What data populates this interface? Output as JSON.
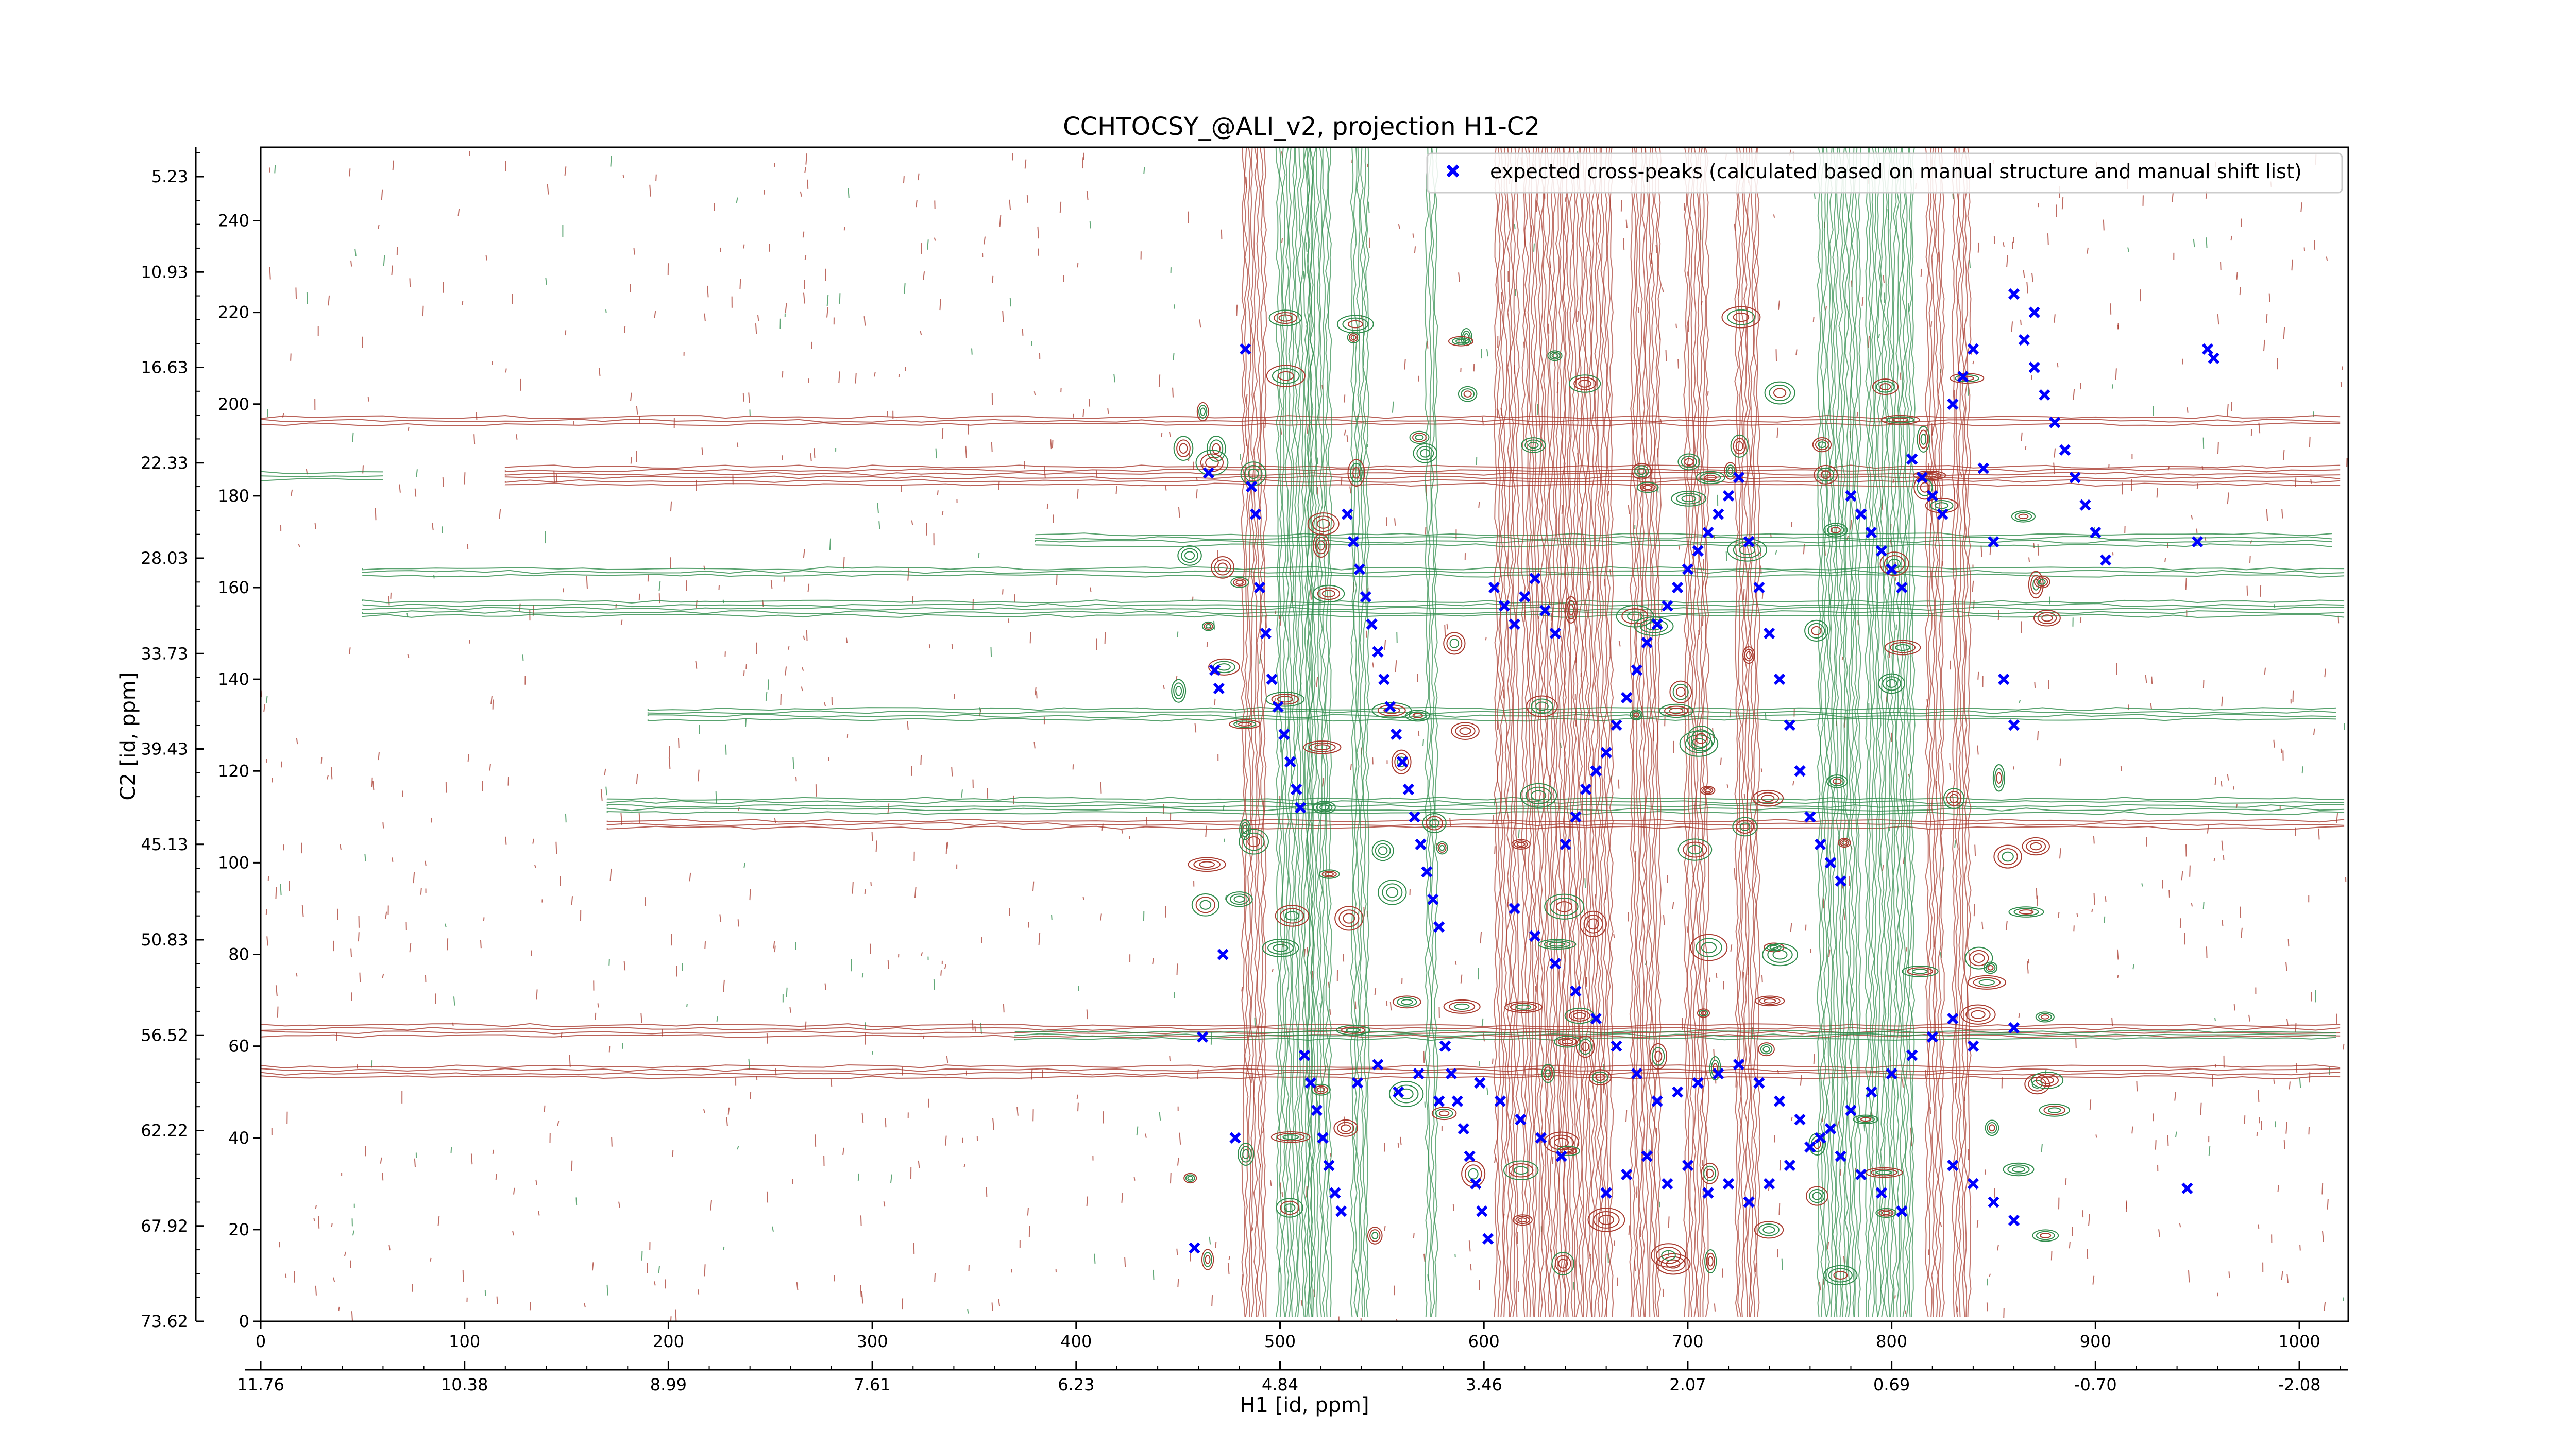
{
  "chart_data": {
    "type": "scatter",
    "title": "CCHTOCSY_@ALI_v2, projection H1-C2",
    "xlabel": "H1 [id, ppm]",
    "ylabel": "C2 [id, ppm]",
    "xlim": [
      0,
      1024
    ],
    "ylim": [
      0,
      256
    ],
    "x_ticks": [
      0,
      100,
      200,
      300,
      400,
      500,
      600,
      700,
      800,
      900,
      1000
    ],
    "y_ticks": [
      0,
      20,
      40,
      60,
      80,
      100,
      120,
      140,
      160,
      180,
      200,
      220,
      240
    ],
    "secondary_x_ticks": [
      {
        "pos": 0,
        "label": "11.76"
      },
      {
        "pos": 100,
        "label": "10.38"
      },
      {
        "pos": 200,
        "label": "8.99"
      },
      {
        "pos": 300,
        "label": "7.61"
      },
      {
        "pos": 400,
        "label": "6.23"
      },
      {
        "pos": 500,
        "label": "4.84"
      },
      {
        "pos": 600,
        "label": "3.46"
      },
      {
        "pos": 700,
        "label": "2.07"
      },
      {
        "pos": 800,
        "label": "0.69"
      },
      {
        "pos": 900,
        "label": "-0.70"
      },
      {
        "pos": 1000,
        "label": "-2.08"
      }
    ],
    "secondary_y_ticks": [
      {
        "pos": 0,
        "label": "73.62"
      },
      {
        "pos": 20.8,
        "label": "67.92"
      },
      {
        "pos": 41.6,
        "label": "62.22"
      },
      {
        "pos": 62.4,
        "label": "56.52"
      },
      {
        "pos": 83.2,
        "label": "50.83"
      },
      {
        "pos": 104,
        "label": "45.13"
      },
      {
        "pos": 124.8,
        "label": "39.43"
      },
      {
        "pos": 145.6,
        "label": "33.73"
      },
      {
        "pos": 166.4,
        "label": "28.03"
      },
      {
        "pos": 187.2,
        "label": "22.33"
      },
      {
        "pos": 208,
        "label": "16.63"
      },
      {
        "pos": 228.8,
        "label": "10.93"
      },
      {
        "pos": 249.6,
        "label": "5.23"
      }
    ],
    "legend": {
      "position": "top-right",
      "entries": [
        "expected cross-peaks (calculated based on manual structure and manual shift list)"
      ]
    },
    "colors": {
      "marker": "#0000ff",
      "positive_contour": "#a83a2e",
      "negative_contour": "#2e8b4a",
      "axes": "#000000"
    },
    "series": [
      {
        "name": "expected cross-peaks (calculated based on manual structure and manual shift list)",
        "marker": "x",
        "points": [
          [
            458,
            16
          ],
          [
            462,
            62
          ],
          [
            465,
            185
          ],
          [
            468,
            142
          ],
          [
            470,
            138
          ],
          [
            472,
            80
          ],
          [
            478,
            40
          ],
          [
            483,
            212
          ],
          [
            486,
            182
          ],
          [
            488,
            176
          ],
          [
            490,
            160
          ],
          [
            493,
            150
          ],
          [
            496,
            140
          ],
          [
            499,
            134
          ],
          [
            502,
            128
          ],
          [
            505,
            122
          ],
          [
            508,
            116
          ],
          [
            510,
            112
          ],
          [
            512,
            58
          ],
          [
            515,
            52
          ],
          [
            518,
            46
          ],
          [
            521,
            40
          ],
          [
            524,
            34
          ],
          [
            527,
            28
          ],
          [
            530,
            24
          ],
          [
            533,
            176
          ],
          [
            536,
            170
          ],
          [
            539,
            164
          ],
          [
            542,
            158
          ],
          [
            545,
            152
          ],
          [
            548,
            146
          ],
          [
            551,
            140
          ],
          [
            554,
            134
          ],
          [
            557,
            128
          ],
          [
            560,
            122
          ],
          [
            563,
            116
          ],
          [
            566,
            110
          ],
          [
            569,
            104
          ],
          [
            572,
            98
          ],
          [
            575,
            92
          ],
          [
            578,
            86
          ],
          [
            581,
            60
          ],
          [
            584,
            54
          ],
          [
            587,
            48
          ],
          [
            590,
            42
          ],
          [
            593,
            36
          ],
          [
            596,
            30
          ],
          [
            599,
            24
          ],
          [
            602,
            18
          ],
          [
            605,
            160
          ],
          [
            610,
            156
          ],
          [
            615,
            152
          ],
          [
            620,
            158
          ],
          [
            625,
            162
          ],
          [
            630,
            155
          ],
          [
            635,
            150
          ],
          [
            640,
            104
          ],
          [
            645,
            110
          ],
          [
            650,
            116
          ],
          [
            655,
            120
          ],
          [
            660,
            124
          ],
          [
            665,
            130
          ],
          [
            670,
            136
          ],
          [
            675,
            142
          ],
          [
            680,
            148
          ],
          [
            685,
            152
          ],
          [
            690,
            156
          ],
          [
            695,
            160
          ],
          [
            700,
            164
          ],
          [
            705,
            168
          ],
          [
            710,
            172
          ],
          [
            715,
            176
          ],
          [
            720,
            180
          ],
          [
            725,
            184
          ],
          [
            730,
            170
          ],
          [
            735,
            160
          ],
          [
            740,
            150
          ],
          [
            745,
            140
          ],
          [
            750,
            130
          ],
          [
            755,
            120
          ],
          [
            760,
            110
          ],
          [
            765,
            104
          ],
          [
            770,
            100
          ],
          [
            775,
            96
          ],
          [
            780,
            180
          ],
          [
            785,
            176
          ],
          [
            790,
            172
          ],
          [
            795,
            168
          ],
          [
            800,
            164
          ],
          [
            805,
            160
          ],
          [
            810,
            188
          ],
          [
            815,
            184
          ],
          [
            820,
            180
          ],
          [
            825,
            176
          ],
          [
            830,
            200
          ],
          [
            835,
            206
          ],
          [
            840,
            212
          ],
          [
            845,
            186
          ],
          [
            850,
            170
          ],
          [
            855,
            140
          ],
          [
            860,
            130
          ],
          [
            865,
            214
          ],
          [
            870,
            208
          ],
          [
            875,
            202
          ],
          [
            880,
            196
          ],
          [
            885,
            190
          ],
          [
            890,
            184
          ],
          [
            895,
            178
          ],
          [
            900,
            172
          ],
          [
            905,
            166
          ],
          [
            615,
            90
          ],
          [
            625,
            84
          ],
          [
            635,
            78
          ],
          [
            645,
            72
          ],
          [
            655,
            66
          ],
          [
            665,
            60
          ],
          [
            675,
            54
          ],
          [
            685,
            48
          ],
          [
            695,
            50
          ],
          [
            705,
            52
          ],
          [
            715,
            54
          ],
          [
            725,
            56
          ],
          [
            735,
            52
          ],
          [
            745,
            48
          ],
          [
            755,
            44
          ],
          [
            765,
            40
          ],
          [
            775,
            36
          ],
          [
            785,
            32
          ],
          [
            795,
            28
          ],
          [
            805,
            24
          ],
          [
            538,
            52
          ],
          [
            548,
            56
          ],
          [
            558,
            50
          ],
          [
            568,
            54
          ],
          [
            578,
            48
          ],
          [
            598,
            52
          ],
          [
            608,
            48
          ],
          [
            618,
            44
          ],
          [
            628,
            40
          ],
          [
            638,
            36
          ],
          [
            660,
            28
          ],
          [
            670,
            32
          ],
          [
            680,
            36
          ],
          [
            690,
            30
          ],
          [
            700,
            34
          ],
          [
            710,
            28
          ],
          [
            720,
            30
          ],
          [
            730,
            26
          ],
          [
            740,
            30
          ],
          [
            750,
            34
          ],
          [
            760,
            38
          ],
          [
            770,
            42
          ],
          [
            780,
            46
          ],
          [
            790,
            50
          ],
          [
            800,
            54
          ],
          [
            810,
            58
          ],
          [
            820,
            62
          ],
          [
            830,
            66
          ],
          [
            840,
            60
          ],
          [
            860,
            64
          ],
          [
            860,
            22
          ],
          [
            850,
            26
          ],
          [
            840,
            30
          ],
          [
            830,
            34
          ],
          [
            945,
            29
          ],
          [
            950,
            170
          ],
          [
            955,
            212
          ],
          [
            958,
            210
          ],
          [
            860,
            224
          ],
          [
            870,
            220
          ]
        ]
      }
    ]
  }
}
